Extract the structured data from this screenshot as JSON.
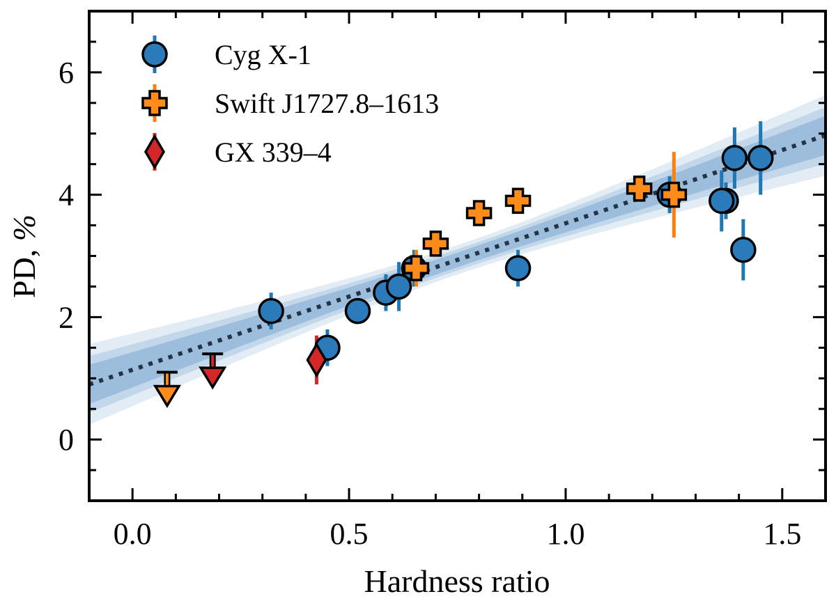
{
  "chart_data": {
    "type": "scatter",
    "xlabel": "Hardness ratio",
    "ylabel": "PD, %",
    "xlim": [
      -0.1,
      1.6
    ],
    "ylim": [
      -1.0,
      7.0
    ],
    "xticks": [
      {
        "value": 0.0,
        "label": "0.0"
      },
      {
        "value": 0.5,
        "label": "0.5"
      },
      {
        "value": 1.0,
        "label": "1.0"
      },
      {
        "value": 1.5,
        "label": "1.5"
      }
    ],
    "yticks": [
      {
        "value": 0,
        "label": "0"
      },
      {
        "value": 2,
        "label": "2"
      },
      {
        "value": 4,
        "label": "4"
      },
      {
        "value": 6,
        "label": "6"
      }
    ],
    "legend_position": "top-left",
    "fit": {
      "style": "dotted",
      "color": "#243447",
      "slope": 2.4,
      "intercept": 1.14,
      "band_1sigma_halfwidth_at_ends": 0.32,
      "band_1sigma_halfwidth_center": 0.12,
      "band_2sigma_halfwidth_at_ends": 0.66,
      "band_2sigma_halfwidth_center": 0.24,
      "band_color": "#4a86bf"
    },
    "series": [
      {
        "name": "Cyg X-1",
        "marker": "circle",
        "color": "#2b7bba",
        "error_color": "#1f77b4",
        "points": [
          {
            "x": 0.32,
            "y": 2.1,
            "err": 0.3
          },
          {
            "x": 0.45,
            "y": 1.5,
            "err": 0.3
          },
          {
            "x": 0.52,
            "y": 2.1,
            "err": 0.2
          },
          {
            "x": 0.585,
            "y": 2.4,
            "err": 0.3
          },
          {
            "x": 0.615,
            "y": 2.5,
            "err": 0.4
          },
          {
            "x": 0.65,
            "y": 2.8,
            "err": 0.3
          },
          {
            "x": 0.89,
            "y": 2.8,
            "err": 0.3
          },
          {
            "x": 1.24,
            "y": 4.0,
            "err": 0.3
          },
          {
            "x": 1.37,
            "y": 3.9,
            "err": 0.3
          },
          {
            "x": 1.36,
            "y": 3.9,
            "err": 0.5
          },
          {
            "x": 1.41,
            "y": 3.1,
            "err": 0.5
          },
          {
            "x": 1.39,
            "y": 4.6,
            "err": 0.5
          },
          {
            "x": 1.45,
            "y": 4.6,
            "err": 0.6
          }
        ]
      },
      {
        "name": "Swift J1727.8–1613",
        "marker": "plus",
        "color": "#ff8c1a",
        "error_color": "#ff7f0e",
        "points": [
          {
            "x": 0.655,
            "y": 2.8,
            "err": 0.3
          },
          {
            "x": 0.7,
            "y": 3.2,
            "err": 0.15
          },
          {
            "x": 0.8,
            "y": 3.7,
            "err": 0.15
          },
          {
            "x": 0.89,
            "y": 3.9,
            "err": 0.15
          },
          {
            "x": 1.17,
            "y": 4.1,
            "err": 0.15
          },
          {
            "x": 1.25,
            "y": 4.0,
            "err": 0.7
          }
        ],
        "upper_limits": [
          {
            "x": 0.08,
            "y": 1.1
          }
        ]
      },
      {
        "name": "GX 339–4",
        "marker": "diamond",
        "color": "#d62728",
        "error_color": "#d62728",
        "points": [
          {
            "x": 0.425,
            "y": 1.3,
            "err": 0.4
          }
        ],
        "upper_limits": [
          {
            "x": 0.185,
            "y": 1.4
          }
        ]
      }
    ]
  }
}
